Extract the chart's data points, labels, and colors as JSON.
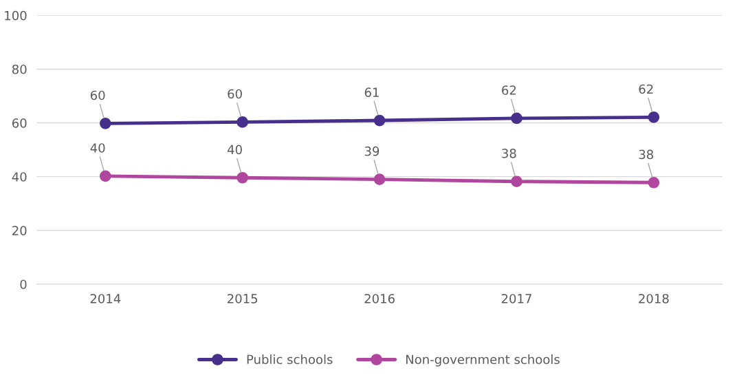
{
  "chart_data": {
    "type": "line",
    "categories": [
      "2014",
      "2015",
      "2016",
      "2017",
      "2018"
    ],
    "series": [
      {
        "name": "Public schools",
        "color": "#47308c",
        "values": [
          59.8,
          60.3,
          60.9,
          61.7,
          62.1
        ],
        "value_labels": [
          "60",
          "60",
          "61",
          "62",
          "62"
        ]
      },
      {
        "name": "Non-government schools",
        "color": "#b0479e",
        "values": [
          40.2,
          39.6,
          39.0,
          38.2,
          37.8
        ],
        "value_labels": [
          "40",
          "40",
          "39",
          "38",
          "38"
        ]
      }
    ],
    "ylim": [
      0,
      100
    ],
    "yticks": [
      0,
      20,
      40,
      60,
      80,
      100
    ],
    "grid": "y",
    "legend": "bottom",
    "marker": "circle",
    "line_style": "solid"
  }
}
